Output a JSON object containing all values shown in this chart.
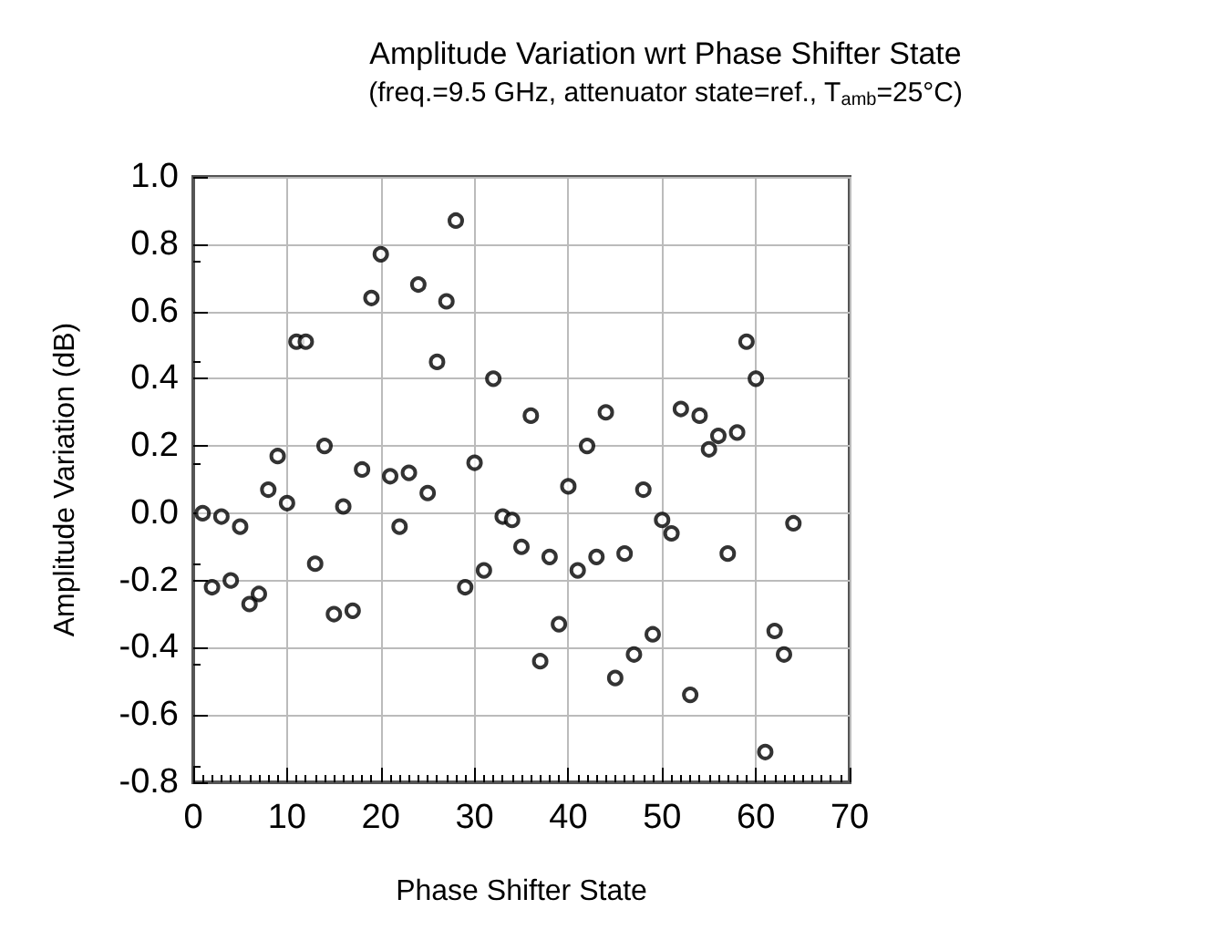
{
  "chart_data": {
    "type": "scatter",
    "title": "Amplitude Variation wrt Phase Shifter State",
    "subtitle": "(freq.=9.5 GHz, attenuator state=ref., T$_{amb}$=25°C)",
    "xlabel": "Phase Shifter State",
    "ylabel": "Amplitude Variation (dB)",
    "x": [
      1,
      2,
      3,
      4,
      5,
      6,
      7,
      8,
      9,
      10,
      11,
      12,
      13,
      14,
      15,
      16,
      17,
      18,
      19,
      20,
      21,
      22,
      23,
      24,
      25,
      26,
      27,
      28,
      29,
      30,
      31,
      32,
      33,
      34,
      35,
      36,
      37,
      38,
      39,
      40,
      41,
      42,
      43,
      44,
      45,
      46,
      47,
      48,
      49,
      50,
      51,
      52,
      53,
      54,
      55,
      56,
      57,
      58,
      59,
      60,
      61,
      62,
      63,
      64
    ],
    "series": [
      {
        "color": "#000000",
        "values": [
          0.0,
          -0.22,
          -0.01,
          -0.2,
          -0.04,
          -0.27,
          -0.24,
          0.07,
          0.17,
          0.03,
          0.51,
          0.51,
          -0.15,
          0.2,
          -0.3,
          0.02,
          -0.29,
          0.13,
          0.64,
          0.77,
          0.11,
          -0.04,
          0.12,
          0.68,
          0.06,
          0.45,
          0.63,
          0.87,
          -0.22,
          0.15,
          -0.17,
          0.4,
          -0.01,
          -0.02,
          -0.1,
          0.29,
          -0.44,
          -0.13,
          -0.33,
          0.08,
          -0.17,
          0.2,
          -0.13,
          0.3,
          -0.49,
          -0.12,
          -0.42,
          0.07,
          -0.36,
          -0.02,
          -0.06,
          0.31,
          -0.54,
          0.29,
          0.19,
          0.23,
          -0.12,
          0.24,
          0.51,
          0.4,
          -0.71,
          -0.35,
          -0.42,
          -0.03
        ]
      }
    ],
    "xlim": [
      0,
      70
    ],
    "xticks": [
      0,
      10,
      20,
      30,
      40,
      50,
      60,
      70
    ],
    "ylim": [
      -0.8,
      1.0
    ],
    "yticks": [
      {
        "value": -0.8,
        "label": "-0.8"
      },
      {
        "value": -0.6,
        "label": "-0.6"
      },
      {
        "value": -0.4,
        "label": "-0.4"
      },
      {
        "value": -0.2,
        "label": "-0.2"
      },
      {
        "value": 0,
        "label": "0.0"
      },
      {
        "value": 0.2,
        "label": "0.2"
      },
      {
        "value": 0.4,
        "label": "0.4"
      },
      {
        "value": 0.6,
        "label": "0.6"
      },
      {
        "value": 0.8,
        "label": "0.8"
      },
      {
        "value": 1.0,
        "label": "1.0"
      }
    ],
    "grid": true,
    "marker": "circle"
  }
}
